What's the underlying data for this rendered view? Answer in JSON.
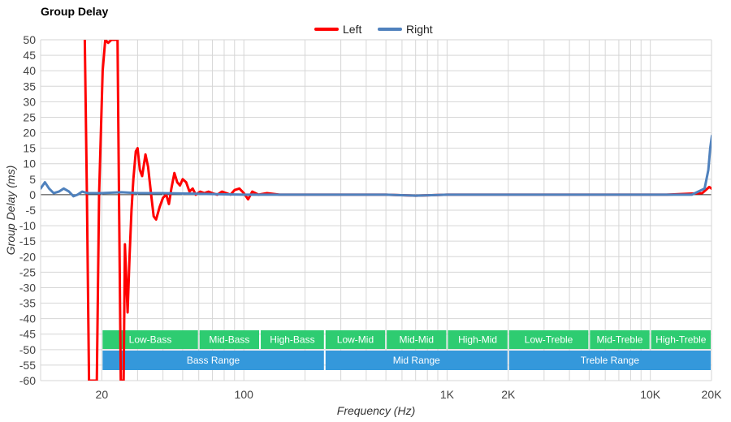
{
  "chart_data": {
    "type": "line",
    "title": "Group Delay",
    "xlabel": "Frequency (Hz)",
    "ylabel": "Group Delay (ms)",
    "x_scale": "log",
    "xlim": [
      10,
      20000
    ],
    "ylim": [
      -60,
      50
    ],
    "grid": true,
    "legend_position": "top-center",
    "x_ticks": [
      {
        "value": 20,
        "label": "20"
      },
      {
        "value": 100,
        "label": "100"
      },
      {
        "value": 1000,
        "label": "1K"
      },
      {
        "value": 2000,
        "label": "2K"
      },
      {
        "value": 10000,
        "label": "10K"
      },
      {
        "value": 20000,
        "label": "20K"
      }
    ],
    "y_ticks": [
      50,
      45,
      40,
      35,
      30,
      25,
      20,
      15,
      10,
      5,
      0,
      -5,
      -10,
      -15,
      -20,
      -25,
      -30,
      -35,
      -40,
      -45,
      -50,
      -55,
      -60
    ],
    "series": [
      {
        "name": "Left",
        "color": "#ff0000",
        "points": [
          [
            16.5,
            50
          ],
          [
            16.9,
            0
          ],
          [
            17.3,
            -60
          ],
          [
            18.9,
            -60
          ],
          [
            19.4,
            0
          ],
          [
            20.2,
            40
          ],
          [
            20.8,
            50
          ],
          [
            21.5,
            49
          ],
          [
            22.3,
            50
          ],
          [
            23.9,
            50
          ],
          [
            24.3,
            0
          ],
          [
            24.8,
            -60
          ],
          [
            25.6,
            -60
          ],
          [
            26.0,
            -16
          ],
          [
            26.8,
            -38
          ],
          [
            27.4,
            -20
          ],
          [
            28.0,
            -5
          ],
          [
            28.6,
            5
          ],
          [
            29.4,
            14
          ],
          [
            30.0,
            15
          ],
          [
            30.8,
            8
          ],
          [
            31.6,
            6
          ],
          [
            32.8,
            13
          ],
          [
            33.8,
            9
          ],
          [
            35.0,
            0
          ],
          [
            36.0,
            -7
          ],
          [
            37.0,
            -8
          ],
          [
            38.5,
            -4
          ],
          [
            40.0,
            -1
          ],
          [
            41.5,
            0
          ],
          [
            42.8,
            -3
          ],
          [
            44.0,
            2
          ],
          [
            45.5,
            7
          ],
          [
            47.0,
            4
          ],
          [
            48.5,
            3
          ],
          [
            50.0,
            5
          ],
          [
            52.0,
            4
          ],
          [
            54.0,
            1
          ],
          [
            56.0,
            2
          ],
          [
            58.0,
            0
          ],
          [
            61.0,
            1
          ],
          [
            64.0,
            0.5
          ],
          [
            67.0,
            1
          ],
          [
            70.0,
            0.5
          ],
          [
            74.0,
            0
          ],
          [
            78.0,
            1
          ],
          [
            82.0,
            0.5
          ],
          [
            86.0,
            0
          ],
          [
            90.0,
            1.5
          ],
          [
            95.0,
            2
          ],
          [
            100.0,
            0.5
          ],
          [
            105.0,
            -1.5
          ],
          [
            110.0,
            1
          ],
          [
            118.0,
            0
          ],
          [
            130.0,
            0.5
          ],
          [
            150.0,
            0
          ],
          [
            200.0,
            0
          ],
          [
            300.0,
            0
          ],
          [
            500.0,
            0
          ],
          [
            700.0,
            -0.3
          ],
          [
            1000.0,
            0
          ],
          [
            2000.0,
            0
          ],
          [
            5000.0,
            0
          ],
          [
            8000.0,
            0
          ],
          [
            12000.0,
            0
          ],
          [
            18000.0,
            0.5
          ],
          [
            19500.0,
            2.5
          ],
          [
            20500.0,
            1.5
          ],
          [
            21000.0,
            0
          ]
        ]
      },
      {
        "name": "Right",
        "color": "#4f81bd",
        "points": [
          [
            10.0,
            2
          ],
          [
            10.5,
            4
          ],
          [
            11.0,
            2
          ],
          [
            11.6,
            0.5
          ],
          [
            12.3,
            1
          ],
          [
            13.0,
            2
          ],
          [
            13.8,
            1
          ],
          [
            14.5,
            -0.5
          ],
          [
            15.2,
            0
          ],
          [
            16.0,
            1
          ],
          [
            17.0,
            0.5
          ],
          [
            20.0,
            0.5
          ],
          [
            25.0,
            0.8
          ],
          [
            30.0,
            0.5
          ],
          [
            40.0,
            0.5
          ],
          [
            60.0,
            0.3
          ],
          [
            100.0,
            0
          ],
          [
            200.0,
            0
          ],
          [
            500.0,
            0
          ],
          [
            700.0,
            -0.3
          ],
          [
            1000.0,
            0
          ],
          [
            2000.0,
            0
          ],
          [
            5000.0,
            0
          ],
          [
            10000.0,
            0
          ],
          [
            16000.0,
            0
          ],
          [
            18500.0,
            2
          ],
          [
            19300.0,
            8
          ],
          [
            19700.0,
            15
          ],
          [
            20100.0,
            19
          ],
          [
            20500.0,
            16
          ],
          [
            21000.0,
            9
          ]
        ]
      }
    ],
    "annotations": {
      "bands_top": [
        {
          "label": "Low-Bass",
          "from": 20,
          "to": 60
        },
        {
          "label": "Mid-Bass",
          "from": 60,
          "to": 120
        },
        {
          "label": "High-Bass",
          "from": 120,
          "to": 250
        },
        {
          "label": "Low-Mid",
          "from": 250,
          "to": 500
        },
        {
          "label": "Mid-Mid",
          "from": 500,
          "to": 1000
        },
        {
          "label": "High-Mid",
          "from": 1000,
          "to": 2000
        },
        {
          "label": "Low-Treble",
          "from": 2000,
          "to": 5000
        },
        {
          "label": "Mid-Treble",
          "from": 5000,
          "to": 10000
        },
        {
          "label": "High-Treble",
          "from": 10000,
          "to": 20000
        }
      ],
      "bands_bottom": [
        {
          "label": "Bass Range",
          "from": 20,
          "to": 250
        },
        {
          "label": "Mid Range",
          "from": 250,
          "to": 2000
        },
        {
          "label": "Treble Range",
          "from": 2000,
          "to": 20000
        }
      ],
      "band_colors": {
        "top": "#2ecc71",
        "bottom": "#3498db"
      }
    }
  }
}
